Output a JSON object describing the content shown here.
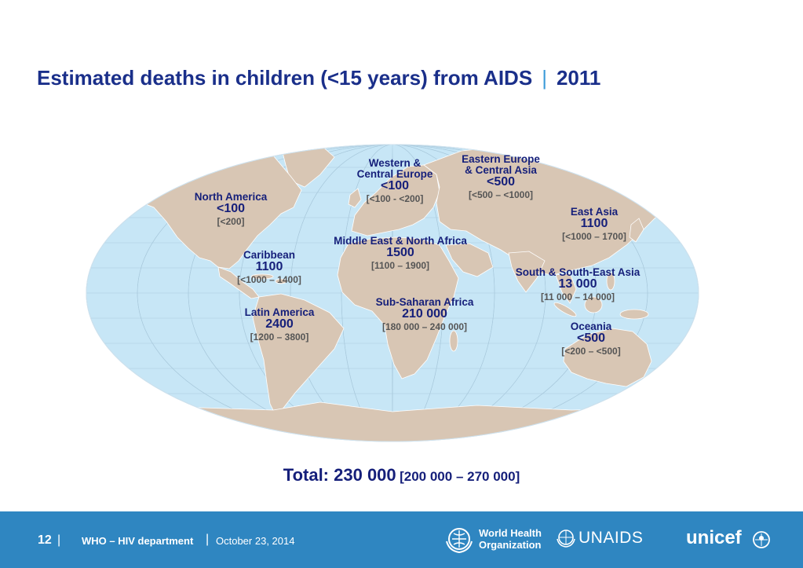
{
  "title": {
    "main": "Estimated deaths in children (<15 years) from AIDS",
    "separator": "|",
    "year": "2011"
  },
  "colors": {
    "title": "#1a2f8a",
    "ocean": "#c7e6f6",
    "land": "#d8c6b4",
    "footer": "#2f86c1",
    "range": "#555555"
  },
  "regions": [
    {
      "name_lines": [
        "North America"
      ],
      "value": "<100",
      "range": "[<200]"
    },
    {
      "name_lines": [
        "Caribbean"
      ],
      "value": "1100",
      "range": "[<1000 – 1400]"
    },
    {
      "name_lines": [
        "Latin America"
      ],
      "value": "2400",
      "range": "[1200 – 3800]"
    },
    {
      "name_lines": [
        "Western &",
        "Central Europe"
      ],
      "value": "<100",
      "range": "[<100 - <200]"
    },
    {
      "name_lines": [
        "Eastern Europe",
        "& Central Asia"
      ],
      "value": "<500",
      "range": "[<500 – <1000]"
    },
    {
      "name_lines": [
        "Middle East & North Africa"
      ],
      "value": "1500",
      "range": "[1100 – 1900]"
    },
    {
      "name_lines": [
        "Sub-Saharan Africa"
      ],
      "value": "210 000",
      "range": "[180 000 – 240 000]"
    },
    {
      "name_lines": [
        "East Asia"
      ],
      "value": "1100",
      "range": "[<1000 – 1700]"
    },
    {
      "name_lines": [
        "South & South-East Asia"
      ],
      "value": "13 000",
      "range": "[11 000 – 14 000]"
    },
    {
      "name_lines": [
        "Oceania"
      ],
      "value": "<500",
      "range": "[<200 – <500]"
    }
  ],
  "total": {
    "label": "Total: 230 000",
    "range": "[200 000 – 270 000]"
  },
  "footer": {
    "page": "12",
    "separator": "|",
    "department": "WHO – HIV department",
    "date": "October 23, 2014",
    "logos": {
      "who": [
        "World Health",
        "Organization"
      ],
      "unaids": "UNAIDS",
      "unicef": "unicef"
    }
  }
}
